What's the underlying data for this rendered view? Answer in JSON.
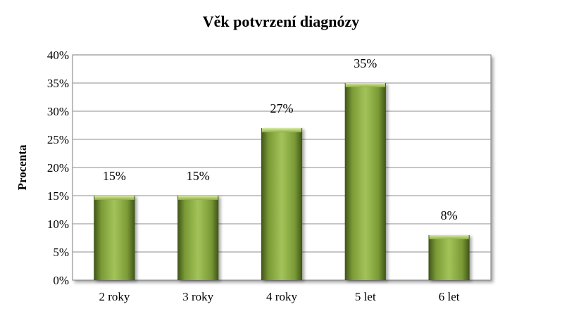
{
  "chart_data": {
    "type": "bar",
    "title": "Věk potvrzení diagnózy",
    "xlabel": "",
    "ylabel": "Procenta",
    "categories": [
      "2 roky",
      "3 roky",
      "4 roky",
      "5 let",
      "6 let"
    ],
    "values": [
      15,
      15,
      27,
      35,
      8
    ],
    "data_labels": [
      "15%",
      "15%",
      "27%",
      "35%",
      "8%"
    ],
    "yticks": [
      "0%",
      "5%",
      "10%",
      "15%",
      "20%",
      "25%",
      "30%",
      "35%",
      "40%"
    ],
    "ylim": [
      0,
      40
    ],
    "grid": true,
    "legend": "none",
    "colors": {
      "bar_light": "#a3c35a",
      "bar_mid": "#7a9a36",
      "bar_dark": "#3f5418",
      "grid": "#8c8c8c",
      "frame": "#7f7f7f"
    }
  }
}
